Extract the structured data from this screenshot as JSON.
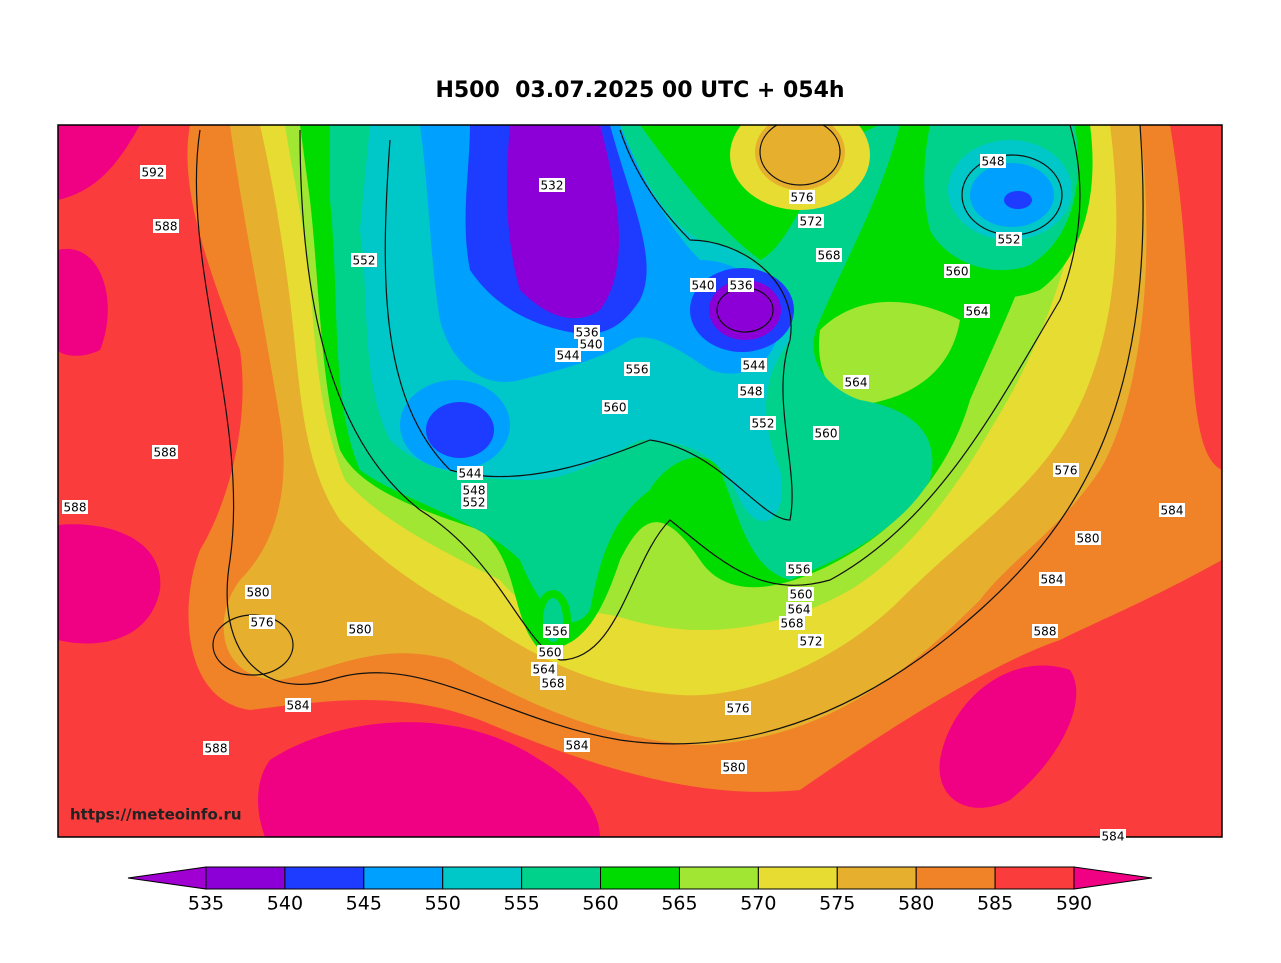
{
  "map": {
    "title": "H500  03.07.2025 00 UTC + 054h",
    "watermark": "https://meteoinfo.ru",
    "contour_labels": [
      592,
      588,
      552,
      532,
      576,
      572,
      568,
      548,
      552,
      560,
      564,
      540,
      536,
      536,
      540,
      544,
      556,
      544,
      548,
      564,
      560,
      552,
      560,
      588,
      588,
      544,
      548,
      552,
      576,
      584,
      580,
      584,
      588,
      556,
      560,
      564,
      568,
      572,
      580,
      576,
      580,
      556,
      560,
      564,
      568,
      584,
      576,
      588,
      584,
      580,
      584
    ],
    "colorbar": {
      "ticks": [
        535,
        540,
        545,
        550,
        555,
        560,
        565,
        570,
        575,
        580,
        585,
        590
      ],
      "colors": [
        "#a000d2",
        "#8c00d7",
        "#1e3cff",
        "#00a0ff",
        "#00c8c8",
        "#00d28c",
        "#00dc00",
        "#a0e632",
        "#e6dc32",
        "#e6af2d",
        "#f08228",
        "#fa3c3c",
        "#f00082"
      ]
    }
  }
}
